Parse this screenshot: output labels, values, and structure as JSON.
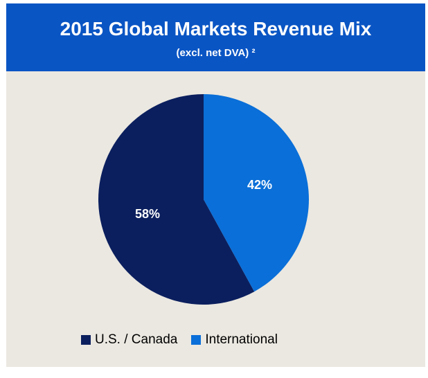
{
  "chart_data": {
    "type": "pie",
    "title": "2015 Global Markets Revenue Mix",
    "subtitle": "(excl. net DVA) ²",
    "slices": [
      {
        "name": "U.S. / Canada",
        "value": 58,
        "label": "58%",
        "color": "#0b1f5e"
      },
      {
        "name": "International",
        "value": 42,
        "label": "42%",
        "color": "#0a6fd8"
      }
    ],
    "legend_position": "bottom"
  },
  "colors": {
    "header_bg": "#0a55c4",
    "panel_bg": "#ebe8e1"
  }
}
